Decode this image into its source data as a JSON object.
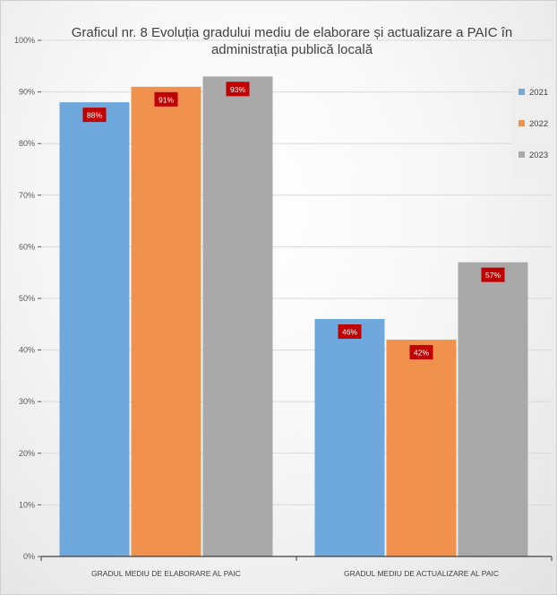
{
  "chart_data": {
    "type": "bar",
    "title": "Graficul nr. 8 Evoluția gradului mediu de elaborare și actualizare a PAIC în administrația publică locală",
    "categories": [
      "GRADUL MEDIU DE ELABORARE AL PAIC",
      "GRADUL MEDIU DE ACTUALIZARE AL PAIC"
    ],
    "series": [
      {
        "name": "2021",
        "values": [
          88,
          46
        ],
        "labels": [
          "88%",
          "46%"
        ],
        "color": "#6fa8dc"
      },
      {
        "name": "2022",
        "values": [
          91,
          42
        ],
        "labels": [
          "91%",
          "42%"
        ],
        "color": "#f0914d"
      },
      {
        "name": "2023",
        "values": [
          93,
          57
        ],
        "labels": [
          "93%",
          "57%"
        ],
        "color": "#a9a9a9"
      }
    ],
    "ylim": [
      0,
      100
    ],
    "yticks": [
      "0%",
      "10%",
      "20%",
      "30%",
      "40%",
      "50%",
      "60%",
      "70%",
      "80%",
      "90%",
      "100%"
    ],
    "grid": true,
    "legend_position": "right",
    "data_label_color": "#c00000"
  }
}
